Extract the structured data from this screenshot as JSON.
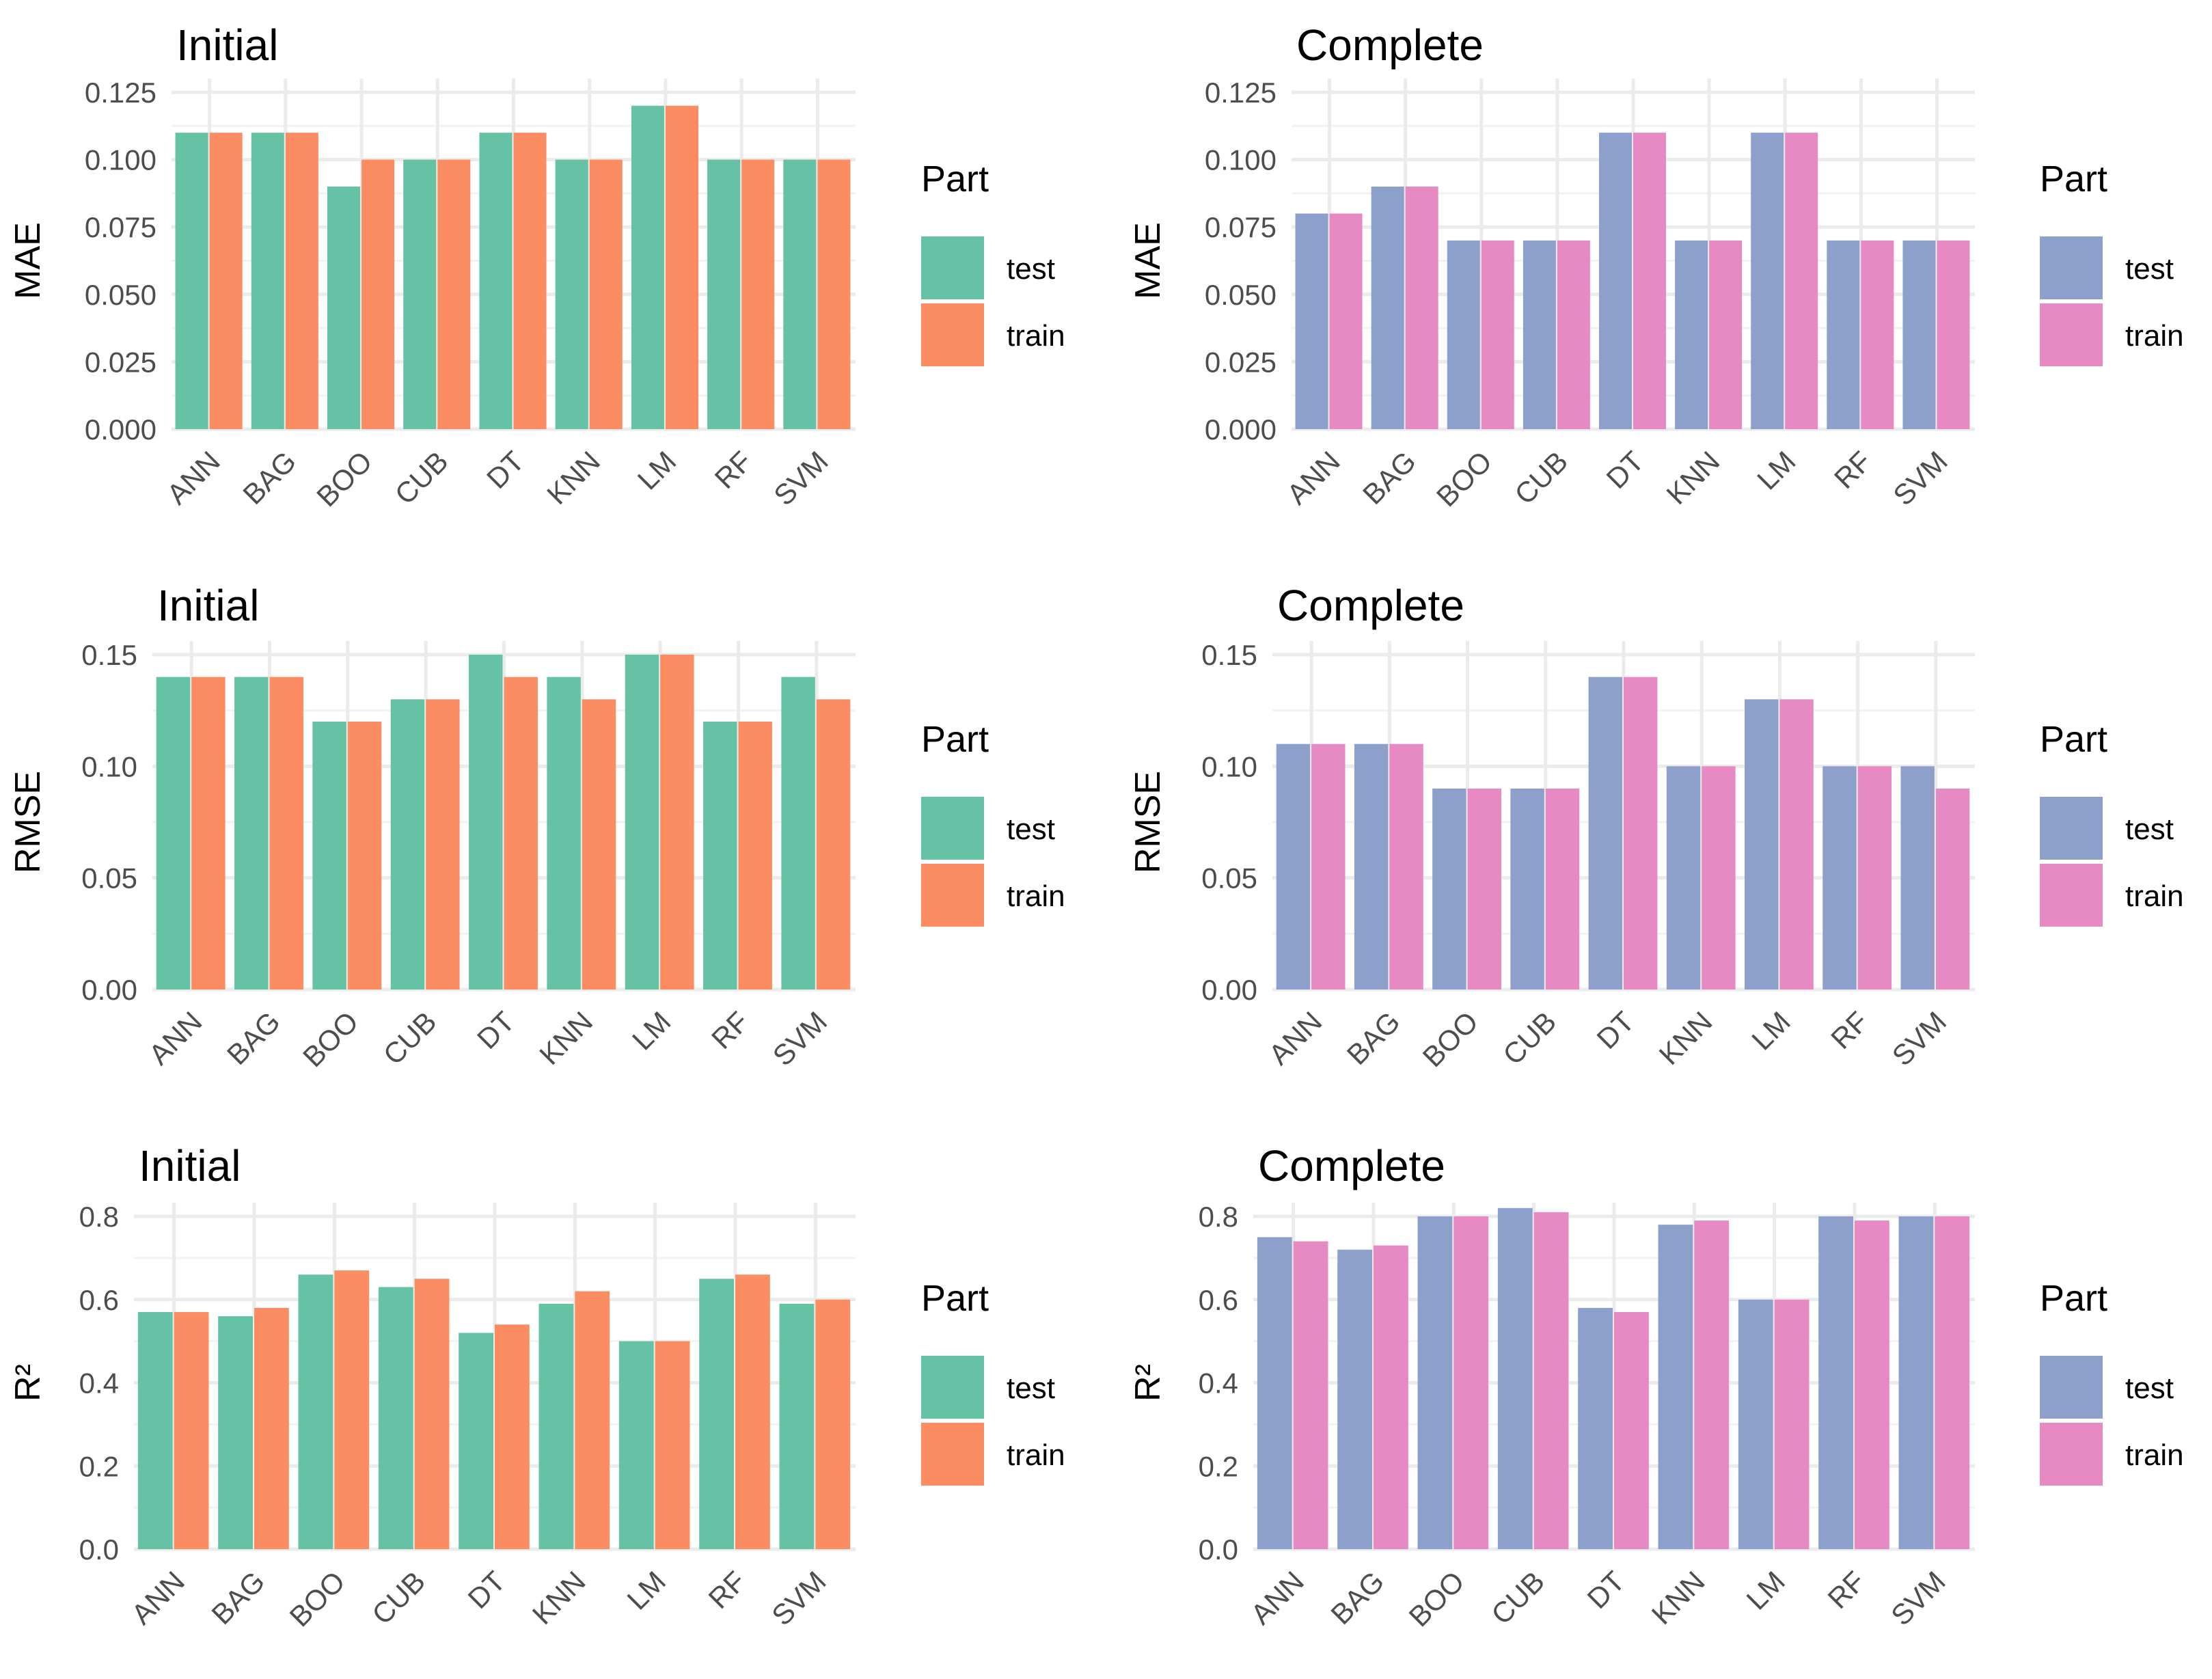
{
  "legend": {
    "title": "Part",
    "labels": [
      "test",
      "train"
    ]
  },
  "palettes": {
    "initial": {
      "test": "#66c2a5",
      "train": "#fc8d62"
    },
    "complete": {
      "test": "#8da0cb",
      "train": "#e78ac3"
    }
  },
  "chart_data": [
    {
      "type": "bar",
      "title": "Initial",
      "ylabel": "MAE",
      "xlabel": "",
      "ylim": [
        0,
        0.125
      ],
      "yticks": [
        "0.000",
        "0.025",
        "0.050",
        "0.075",
        "0.100",
        "0.125"
      ],
      "categories": [
        "ANN",
        "BAG",
        "BOO",
        "CUB",
        "DT",
        "KNN",
        "LM",
        "RF",
        "SVM"
      ],
      "series": [
        {
          "name": "test",
          "values": [
            0.11,
            0.11,
            0.09,
            0.1,
            0.11,
            0.1,
            0.12,
            0.1,
            0.1
          ]
        },
        {
          "name": "train",
          "values": [
            0.11,
            0.11,
            0.1,
            0.1,
            0.11,
            0.1,
            0.12,
            0.1,
            0.1
          ]
        }
      ],
      "palette": "initial",
      "legend_position": "right"
    },
    {
      "type": "bar",
      "title": "Complete",
      "ylabel": "MAE",
      "xlabel": "",
      "ylim": [
        0,
        0.125
      ],
      "yticks": [
        "0.000",
        "0.025",
        "0.050",
        "0.075",
        "0.100",
        "0.125"
      ],
      "categories": [
        "ANN",
        "BAG",
        "BOO",
        "CUB",
        "DT",
        "KNN",
        "LM",
        "RF",
        "SVM"
      ],
      "series": [
        {
          "name": "test",
          "values": [
            0.08,
            0.09,
            0.07,
            0.07,
            0.11,
            0.07,
            0.11,
            0.07,
            0.07
          ]
        },
        {
          "name": "train",
          "values": [
            0.08,
            0.09,
            0.07,
            0.07,
            0.11,
            0.07,
            0.11,
            0.07,
            0.07
          ]
        }
      ],
      "palette": "complete",
      "legend_position": "right"
    },
    {
      "type": "bar",
      "title": "Initial",
      "ylabel": "RMSE",
      "xlabel": "",
      "ylim": [
        0,
        0.15
      ],
      "yticks": [
        "0.00",
        "0.05",
        "0.10",
        "0.15"
      ],
      "categories": [
        "ANN",
        "BAG",
        "BOO",
        "CUB",
        "DT",
        "KNN",
        "LM",
        "RF",
        "SVM"
      ],
      "series": [
        {
          "name": "test",
          "values": [
            0.14,
            0.14,
            0.12,
            0.13,
            0.15,
            0.14,
            0.15,
            0.12,
            0.14
          ]
        },
        {
          "name": "train",
          "values": [
            0.14,
            0.14,
            0.12,
            0.13,
            0.14,
            0.13,
            0.15,
            0.12,
            0.13
          ]
        }
      ],
      "palette": "initial",
      "legend_position": "right"
    },
    {
      "type": "bar",
      "title": "Complete",
      "ylabel": "RMSE",
      "xlabel": "",
      "ylim": [
        0,
        0.15
      ],
      "yticks": [
        "0.00",
        "0.05",
        "0.10",
        "0.15"
      ],
      "categories": [
        "ANN",
        "BAG",
        "BOO",
        "CUB",
        "DT",
        "KNN",
        "LM",
        "RF",
        "SVM"
      ],
      "series": [
        {
          "name": "test",
          "values": [
            0.11,
            0.11,
            0.09,
            0.09,
            0.14,
            0.1,
            0.13,
            0.1,
            0.1
          ]
        },
        {
          "name": "train",
          "values": [
            0.11,
            0.11,
            0.09,
            0.09,
            0.14,
            0.1,
            0.13,
            0.1,
            0.09
          ]
        }
      ],
      "palette": "complete",
      "legend_position": "right"
    },
    {
      "type": "bar",
      "title": "Initial",
      "ylabel": "R²",
      "xlabel": "",
      "ylim": [
        0,
        0.8
      ],
      "yticks": [
        "0.0",
        "0.2",
        "0.4",
        "0.6",
        "0.8"
      ],
      "categories": [
        "ANN",
        "BAG",
        "BOO",
        "CUB",
        "DT",
        "KNN",
        "LM",
        "RF",
        "SVM"
      ],
      "series": [
        {
          "name": "test",
          "values": [
            0.57,
            0.56,
            0.66,
            0.63,
            0.52,
            0.59,
            0.5,
            0.65,
            0.59
          ]
        },
        {
          "name": "train",
          "values": [
            0.57,
            0.58,
            0.67,
            0.65,
            0.54,
            0.62,
            0.5,
            0.66,
            0.6
          ]
        }
      ],
      "palette": "initial",
      "legend_position": "right"
    },
    {
      "type": "bar",
      "title": "Complete",
      "ylabel": "R²",
      "xlabel": "",
      "ylim": [
        0,
        0.8
      ],
      "yticks": [
        "0.0",
        "0.2",
        "0.4",
        "0.6",
        "0.8"
      ],
      "categories": [
        "ANN",
        "BAG",
        "BOO",
        "CUB",
        "DT",
        "KNN",
        "LM",
        "RF",
        "SVM"
      ],
      "series": [
        {
          "name": "test",
          "values": [
            0.75,
            0.72,
            0.8,
            0.82,
            0.58,
            0.78,
            0.6,
            0.8,
            0.8
          ]
        },
        {
          "name": "train",
          "values": [
            0.74,
            0.73,
            0.8,
            0.81,
            0.57,
            0.79,
            0.6,
            0.79,
            0.8
          ]
        }
      ],
      "palette": "complete",
      "legend_position": "right"
    }
  ]
}
